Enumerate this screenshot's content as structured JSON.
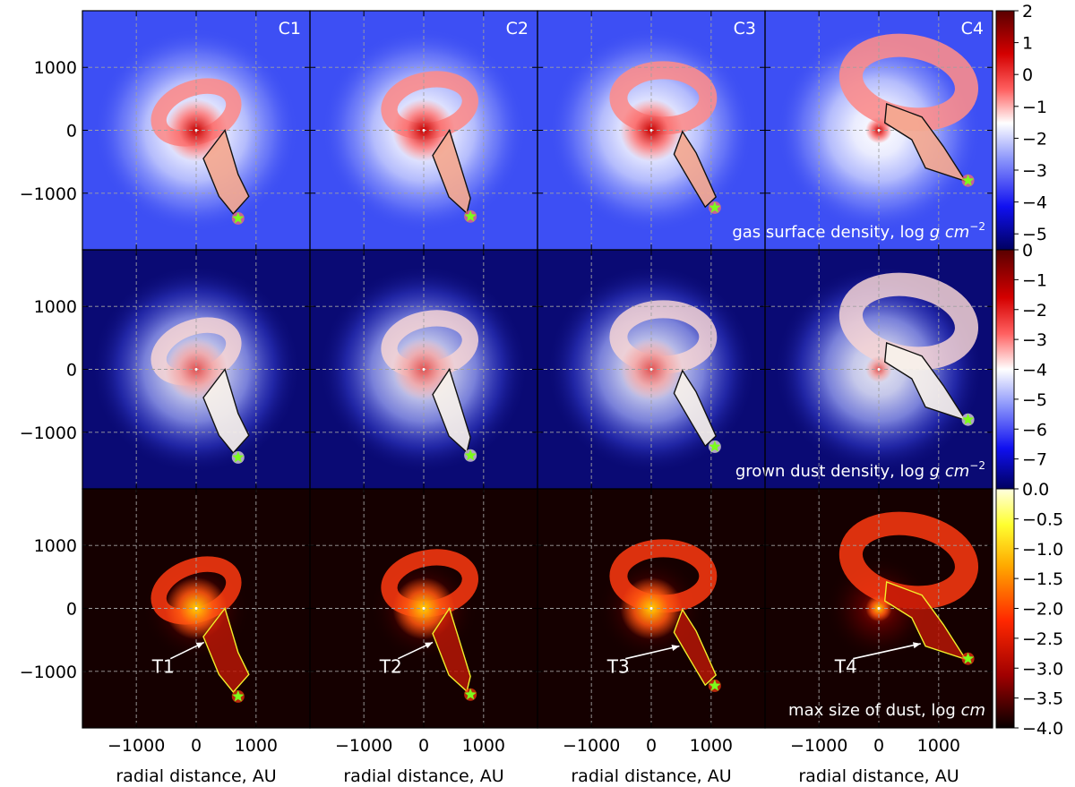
{
  "chart_data": {
    "type": "heatmap",
    "title": "",
    "panel_columns": [
      "C1",
      "C2",
      "C3",
      "C4"
    ],
    "xlabel": "radial distance, AU",
    "ylabel": "",
    "xlim": [
      -1900,
      1900
    ],
    "ylim": [
      -1900,
      1900
    ],
    "x_ticks": [
      -1000,
      0,
      1000
    ],
    "y_ticks": [
      1000,
      0,
      -1000
    ],
    "x_tick_labels": [
      "−1000",
      "0",
      "1000"
    ],
    "y_tick_labels": [
      "1000",
      "0",
      "−1000"
    ],
    "grid": true,
    "rows": [
      {
        "id": "gas",
        "label_text": "gas surface density, log ",
        "label_unit": "g cm",
        "label_exp": "−2",
        "colorbar_range": [
          -5.5,
          2
        ],
        "colorbar_ticks": [
          2,
          1,
          0,
          -1,
          -2,
          -3,
          -4,
          -5
        ],
        "colorbar_labels": [
          "2",
          "1",
          "0",
          "−1",
          "−2",
          "−3",
          "−4",
          "−5"
        ]
      },
      {
        "id": "dust",
        "label_text": "grown dust density, log ",
        "label_unit": "g cm",
        "label_exp": "−2",
        "colorbar_range": [
          -8,
          0
        ],
        "colorbar_ticks": [
          0,
          -1,
          -2,
          -3,
          -4,
          -5,
          -6,
          -7
        ],
        "colorbar_labels": [
          "0",
          "−1",
          "−2",
          "−3",
          "−4",
          "−5",
          "−6",
          "−7"
        ]
      },
      {
        "id": "size",
        "label_text": "max size of dust, log ",
        "label_unit": "cm",
        "label_exp": "",
        "colorbar_range": [
          -4,
          0
        ],
        "colorbar_ticks": [
          0,
          -0.5,
          -1,
          -1.5,
          -2,
          -2.5,
          -3,
          -3.5,
          -4
        ],
        "colorbar_labels": [
          "0.0",
          "−0.5",
          "−1.0",
          "−1.5",
          "−2.0",
          "−2.5",
          "−3.0",
          "−3.5",
          "−4.0"
        ]
      }
    ],
    "columns": [
      {
        "name": "C1",
        "tail_label": "T1",
        "companion_au": [
          700,
          -1400
        ],
        "tail_polygon_au": [
          [
            480,
            0
          ],
          [
            120,
            -450
          ],
          [
            380,
            -1050
          ],
          [
            620,
            -1330
          ],
          [
            880,
            -1050
          ],
          [
            700,
            -700
          ]
        ],
        "arrow_start_au": [
          -430,
          -800
        ],
        "arrow_end_au": [
          130,
          -540
        ]
      },
      {
        "name": "C2",
        "tail_label": "T2",
        "companion_au": [
          780,
          -1370
        ],
        "tail_polygon_au": [
          [
            430,
            0
          ],
          [
            150,
            -400
          ],
          [
            420,
            -1060
          ],
          [
            720,
            -1320
          ],
          [
            780,
            -1080
          ],
          [
            560,
            -400
          ]
        ],
        "arrow_start_au": [
          -430,
          -800
        ],
        "arrow_end_au": [
          150,
          -540
        ]
      },
      {
        "name": "C3",
        "tail_label": "T3",
        "companion_au": [
          1060,
          -1230
        ],
        "tail_polygon_au": [
          [
            520,
            -20
          ],
          [
            380,
            -380
          ],
          [
            700,
            -900
          ],
          [
            900,
            -1220
          ],
          [
            1080,
            -1060
          ],
          [
            750,
            -360
          ]
        ],
        "arrow_start_au": [
          -430,
          -800
        ],
        "arrow_end_au": [
          470,
          -600
        ]
      },
      {
        "name": "C4",
        "tail_label": "T4",
        "companion_au": [
          1490,
          -800
        ],
        "tail_polygon_au": [
          [
            130,
            420
          ],
          [
            100,
            120
          ],
          [
            550,
            -150
          ],
          [
            780,
            -600
          ],
          [
            1450,
            -810
          ],
          [
            1080,
            -260
          ],
          [
            720,
            210
          ]
        ],
        "arrow_start_au": [
          -430,
          -800
        ],
        "arrow_end_au": [
          700,
          -560
        ]
      }
    ]
  }
}
